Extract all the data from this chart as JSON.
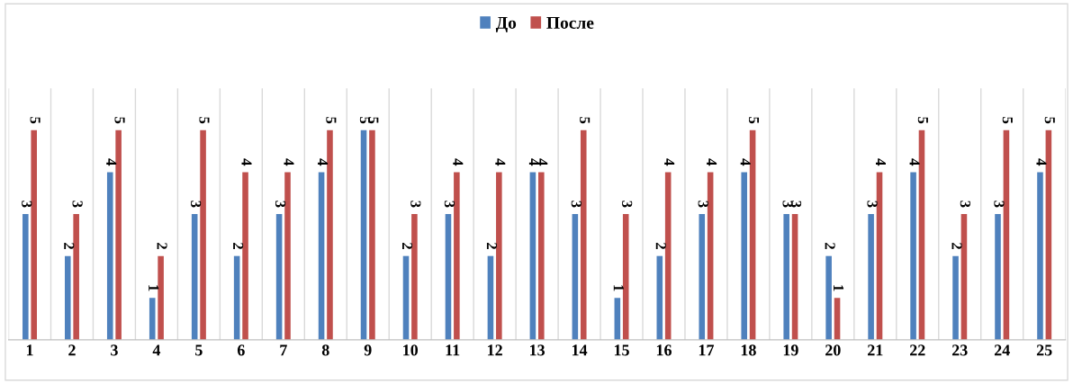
{
  "chart_data": {
    "type": "bar",
    "categories": [
      "1",
      "2",
      "3",
      "4",
      "5",
      "6",
      "7",
      "8",
      "9",
      "10",
      "11",
      "12",
      "13",
      "14",
      "15",
      "16",
      "17",
      "18",
      "19",
      "20",
      "21",
      "22",
      "23",
      "24",
      "25"
    ],
    "series": [
      {
        "name": "До",
        "color": "#4f81bd",
        "values": [
          3,
          2,
          4,
          1,
          3,
          2,
          3,
          4,
          5,
          2,
          3,
          2,
          4,
          3,
          1,
          2,
          3,
          4,
          3,
          2,
          3,
          4,
          2,
          3,
          4
        ]
      },
      {
        "name": "После",
        "color": "#c0504d",
        "values": [
          5,
          3,
          5,
          2,
          5,
          4,
          4,
          5,
          5,
          3,
          4,
          4,
          4,
          5,
          3,
          4,
          4,
          5,
          3,
          1,
          4,
          5,
          3,
          5,
          5
        ]
      }
    ],
    "ylim": [
      0,
      6
    ],
    "data_labels": true,
    "grid": "x",
    "legend": "top",
    "tick_labels": "x"
  }
}
